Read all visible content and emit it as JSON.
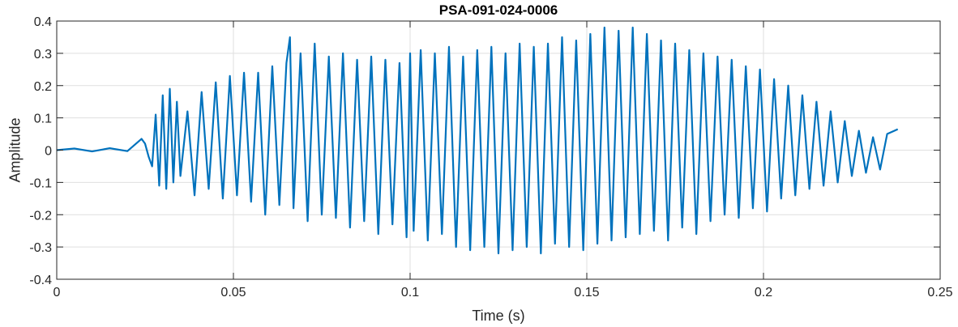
{
  "chart_data": {
    "type": "line",
    "title": "PSA-091-024-0006",
    "xlabel": "Time (s)",
    "ylabel": "Amplitude",
    "xlim": [
      0,
      0.25
    ],
    "ylim": [
      -0.4,
      0.4
    ],
    "xticks": [
      0,
      0.05,
      0.1,
      0.15,
      0.2,
      0.25
    ],
    "xtick_labels": [
      "0",
      "0.05",
      "0.1",
      "0.15",
      "0.2",
      "0.25"
    ],
    "yticks": [
      0.4,
      0.3,
      0.2,
      0.1,
      0,
      -0.1,
      -0.2,
      -0.3,
      -0.4
    ],
    "ytick_labels": [
      "0.4",
      "0.3",
      "0.2",
      "0.1",
      "0",
      "-0.1",
      "-0.2",
      "-0.3",
      "-0.4"
    ],
    "grid": true,
    "line_color": "#0072BD",
    "series": [
      {
        "x": [
          0,
          0.005,
          0.01,
          0.015,
          0.02,
          0.024,
          0.025,
          0.026,
          0.027,
          0.028,
          0.029,
          0.03,
          0.031,
          0.032,
          0.033,
          0.034,
          0.035,
          0.037,
          0.039,
          0.041,
          0.043,
          0.045,
          0.047,
          0.049,
          0.051,
          0.053,
          0.055,
          0.057,
          0.059,
          0.061,
          0.063,
          0.065,
          0.066,
          0.067,
          0.069,
          0.071,
          0.073,
          0.075,
          0.077,
          0.079,
          0.081,
          0.083,
          0.085,
          0.087,
          0.089,
          0.091,
          0.093,
          0.095,
          0.097,
          0.099,
          0.1,
          0.101,
          0.103,
          0.105,
          0.107,
          0.109,
          0.111,
          0.113,
          0.115,
          0.117,
          0.119,
          0.121,
          0.123,
          0.125,
          0.127,
          0.129,
          0.131,
          0.133,
          0.135,
          0.137,
          0.139,
          0.141,
          0.143,
          0.145,
          0.147,
          0.149,
          0.151,
          0.153,
          0.155,
          0.157,
          0.159,
          0.161,
          0.163,
          0.165,
          0.167,
          0.169,
          0.171,
          0.173,
          0.175,
          0.177,
          0.179,
          0.181,
          0.183,
          0.185,
          0.187,
          0.189,
          0.191,
          0.193,
          0.195,
          0.197,
          0.199,
          0.201,
          0.203,
          0.205,
          0.207,
          0.209,
          0.211,
          0.213,
          0.215,
          0.217,
          0.219,
          0.221,
          0.223,
          0.225,
          0.227,
          0.229,
          0.231,
          0.233,
          0.235,
          0.237,
          0.238
        ],
        "y": [
          0,
          0.005,
          -0.004,
          0.006,
          -0.003,
          0.035,
          0.02,
          -0.02,
          -0.05,
          0.11,
          -0.11,
          0.17,
          -0.12,
          0.19,
          -0.1,
          0.15,
          -0.08,
          0.12,
          -0.14,
          0.18,
          -0.12,
          0.21,
          -0.15,
          0.23,
          -0.14,
          0.24,
          -0.16,
          0.24,
          -0.2,
          0.26,
          -0.17,
          0.27,
          0.35,
          -0.18,
          0.3,
          -0.22,
          0.33,
          -0.2,
          0.29,
          -0.21,
          0.3,
          -0.24,
          0.28,
          -0.22,
          0.29,
          -0.26,
          0.28,
          -0.23,
          0.27,
          -0.27,
          0.3,
          -0.25,
          0.31,
          -0.28,
          0.3,
          -0.26,
          0.32,
          -0.3,
          0.29,
          -0.31,
          0.31,
          -0.3,
          0.32,
          -0.32,
          0.3,
          -0.31,
          0.33,
          -0.3,
          0.32,
          -0.32,
          0.33,
          -0.29,
          0.35,
          -0.3,
          0.34,
          -0.31,
          0.36,
          -0.29,
          0.38,
          -0.28,
          0.37,
          -0.27,
          0.38,
          -0.26,
          0.36,
          -0.25,
          0.34,
          -0.28,
          0.33,
          -0.24,
          0.31,
          -0.26,
          0.3,
          -0.22,
          0.29,
          -0.2,
          0.28,
          -0.21,
          0.26,
          -0.18,
          0.25,
          -0.19,
          0.22,
          -0.15,
          0.2,
          -0.14,
          0.17,
          -0.12,
          0.15,
          -0.11,
          0.12,
          -0.1,
          0.09,
          -0.08,
          0.06,
          -0.07,
          0.04,
          -0.06,
          0.05,
          0.06,
          0.065
        ]
      }
    ]
  }
}
